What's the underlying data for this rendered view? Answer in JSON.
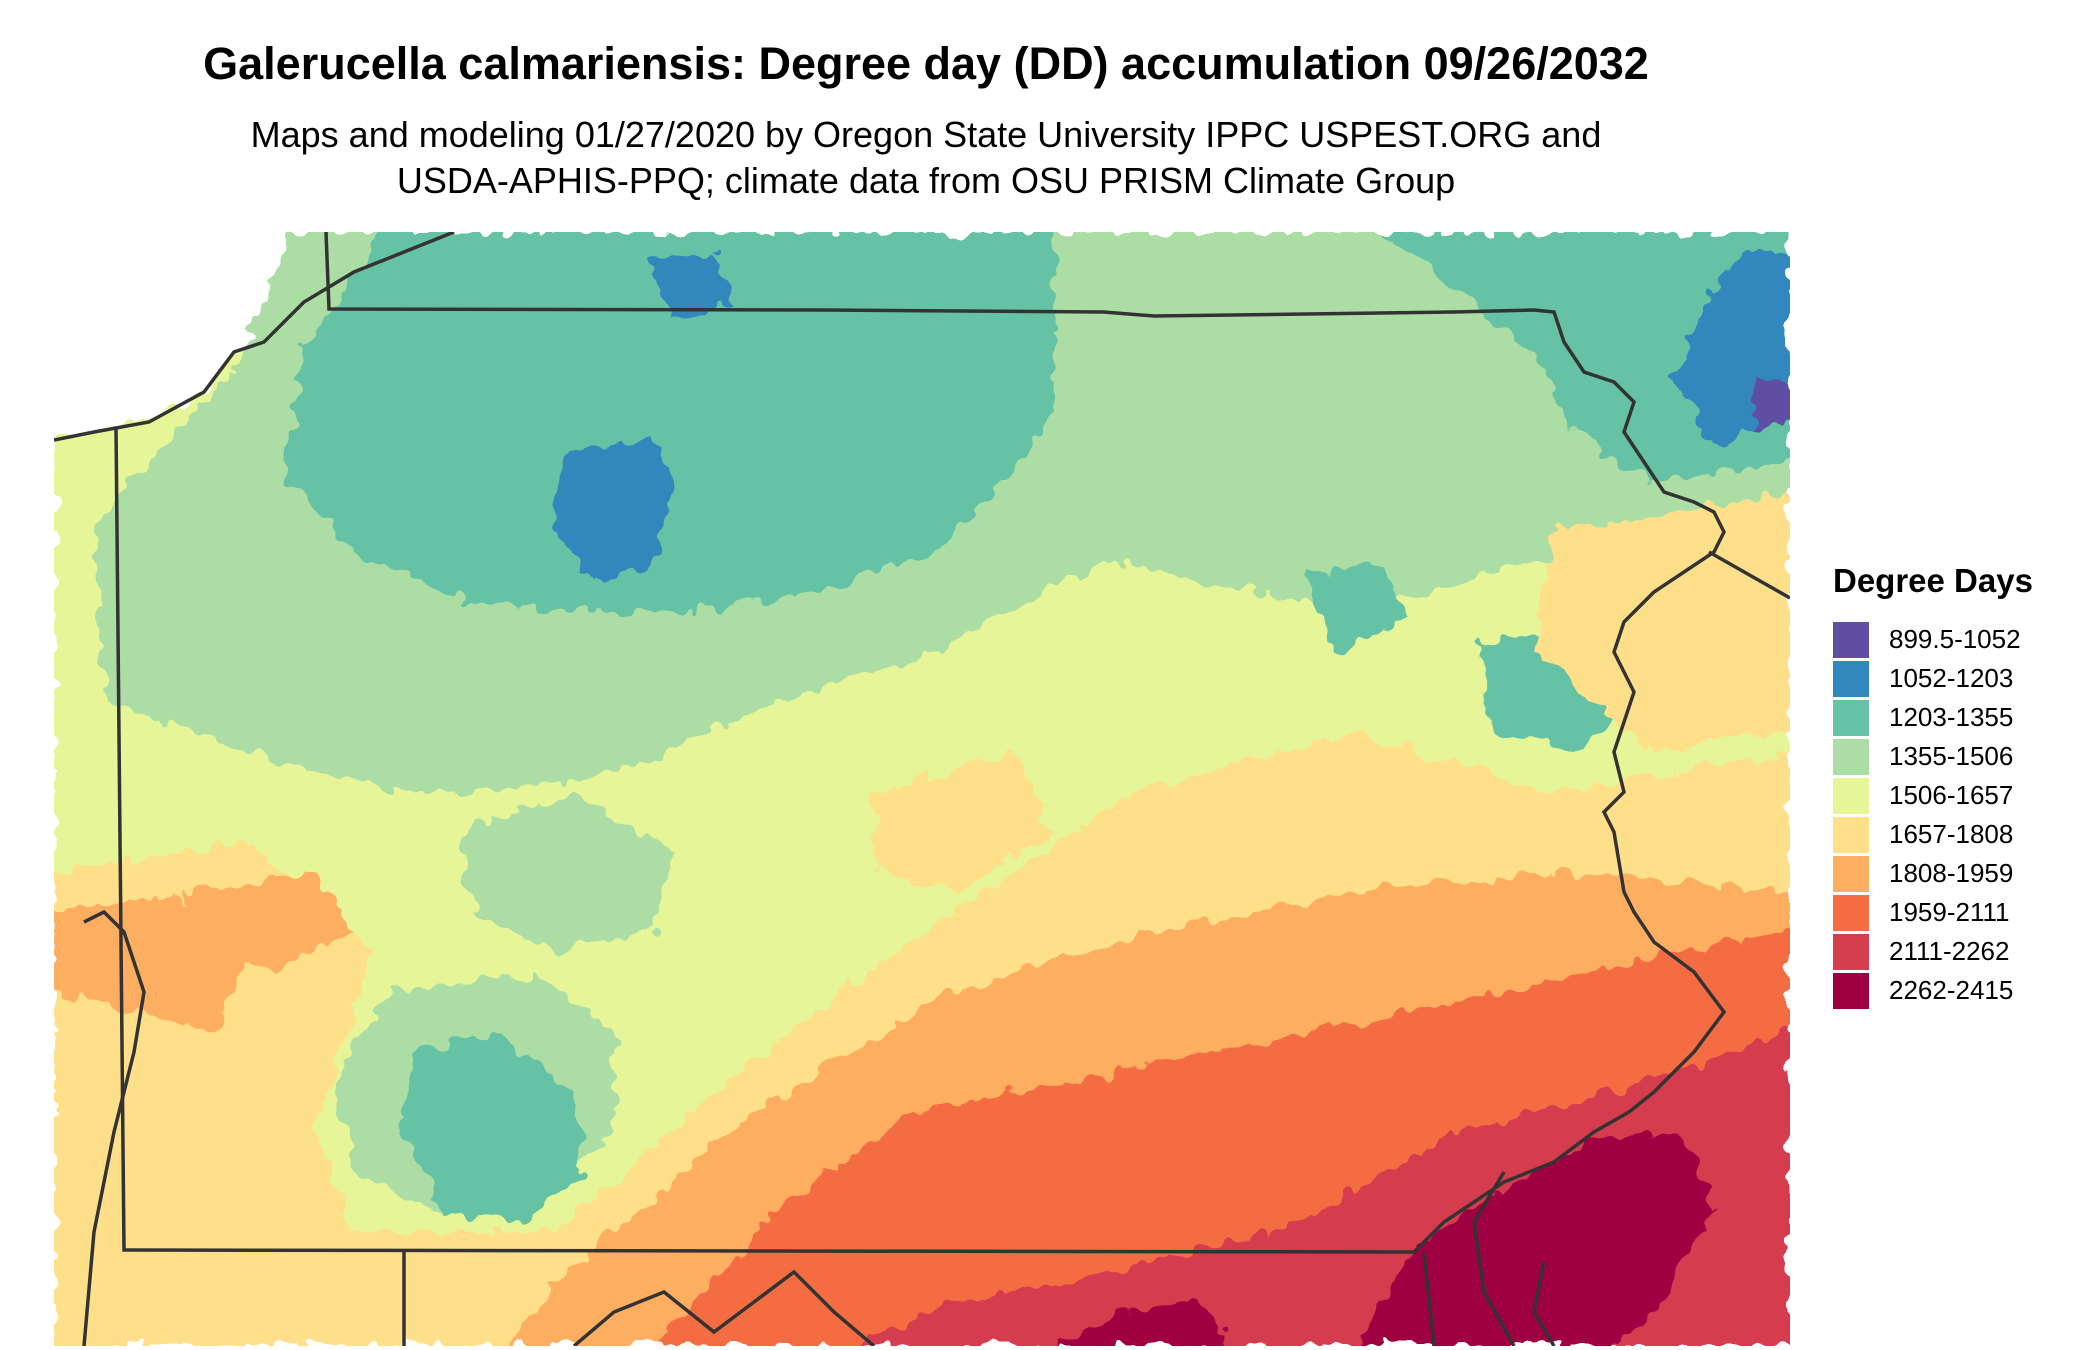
{
  "title": "Galerucella calmariensis: Degree day (DD) accumulation 09/26/2032",
  "subtitle_line1": "Maps and modeling 01/27/2020 by Oregon State University IPPC USPEST.ORG and",
  "subtitle_line2": "USDA-APHIS-PPQ; climate data from OSU PRISM Climate Group",
  "legend": {
    "title": "Degree Days",
    "items": [
      {
        "label": "899.5-1052",
        "color": "#5e4fa2"
      },
      {
        "label": "1052-1203",
        "color": "#3288bd"
      },
      {
        "label": "1203-1355",
        "color": "#66c2a5"
      },
      {
        "label": "1355-1506",
        "color": "#abdda4"
      },
      {
        "label": "1506-1657",
        "color": "#e6f598"
      },
      {
        "label": "1657-1808",
        "color": "#fee08b"
      },
      {
        "label": "1808-1959",
        "color": "#fdae61"
      },
      {
        "label": "1959-2111",
        "color": "#f46d43"
      },
      {
        "label": "2111-2262",
        "color": "#d53e4f"
      },
      {
        "label": "2262-2415",
        "color": "#9e0142"
      }
    ]
  }
}
